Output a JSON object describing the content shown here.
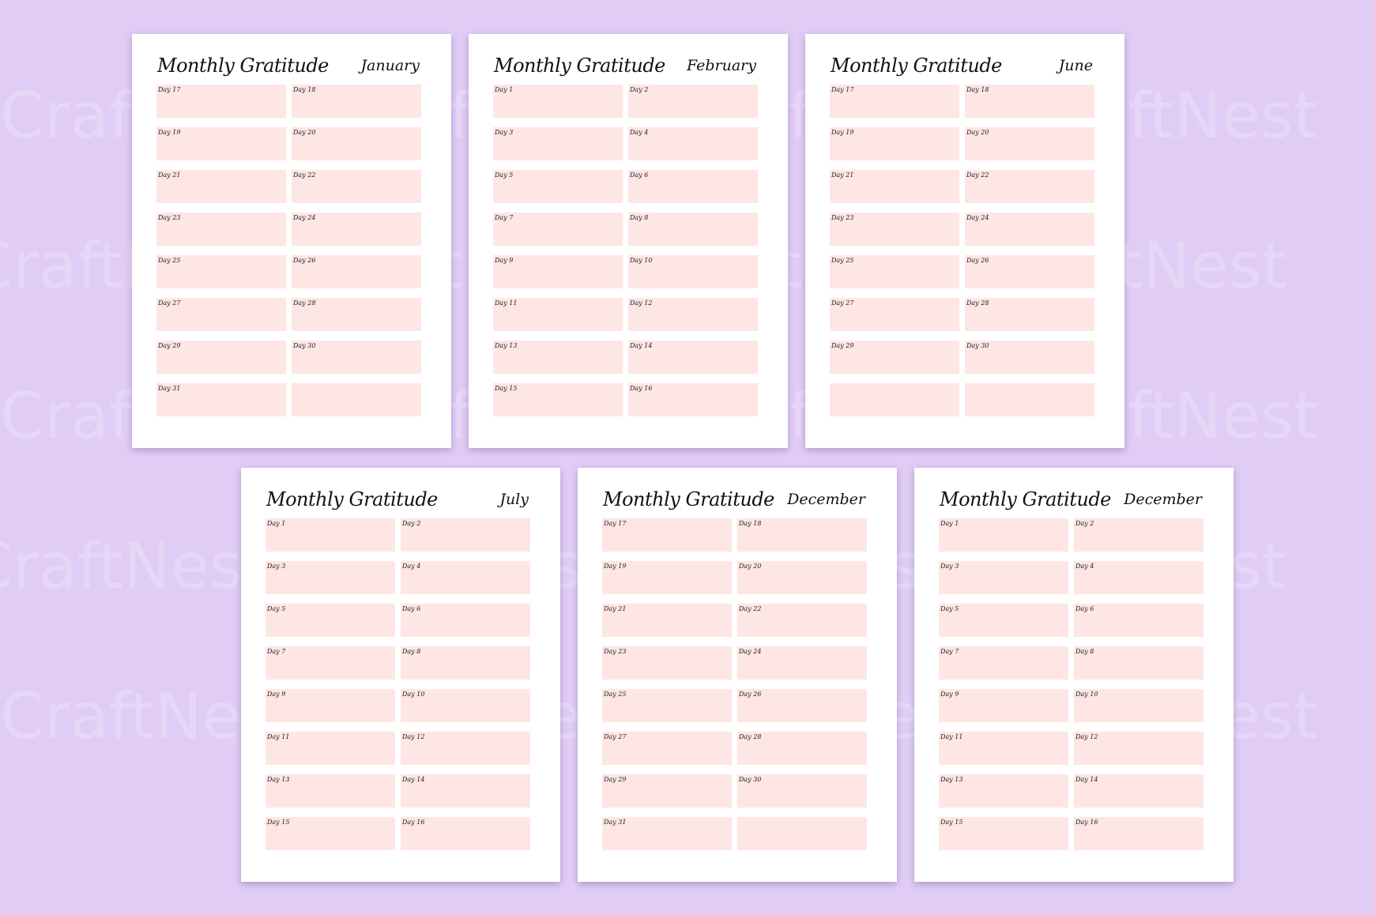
{
  "watermark": {
    "text": "CraftNest"
  },
  "pages": [
    {
      "title": "Monthly Gratitude",
      "month": "January",
      "days": [
        "Day 17",
        "Day 18",
        "Day 19",
        "Day 20",
        "Day 21",
        "Day 22",
        "Day 23",
        "Day 24",
        "Day 25",
        "Day 26",
        "Day 27",
        "Day 28",
        "Day 29",
        "Day 30",
        "Day 31",
        ""
      ]
    },
    {
      "title": "Monthly Gratitude",
      "month": "February",
      "days": [
        "Day 1",
        "Day 2",
        "Day 3",
        "Day 4",
        "Day 5",
        "Day 6",
        "Day 7",
        "Day 8",
        "Day 9",
        "Day 10",
        "Day 11",
        "Day 12",
        "Day 13",
        "Day 14",
        "Day 15",
        "Day 16"
      ]
    },
    {
      "title": "Monthly Gratitude",
      "month": "June",
      "days": [
        "Day 17",
        "Day 18",
        "Day 19",
        "Day 20",
        "Day 21",
        "Day 22",
        "Day 23",
        "Day 24",
        "Day 25",
        "Day 26",
        "Day 27",
        "Day 28",
        "Day 29",
        "Day 30",
        "",
        ""
      ]
    },
    {
      "title": "Monthly Gratitude",
      "month": "July",
      "days": [
        "Day 1",
        "Day 2",
        "Day 3",
        "Day 4",
        "Day 5",
        "Day 6",
        "Day 7",
        "Day 8",
        "Day 9",
        "Day 10",
        "Day 11",
        "Day 12",
        "Day 13",
        "Day 14",
        "Day 15",
        "Day 16"
      ]
    },
    {
      "title": "Monthly Gratitude",
      "month": "December",
      "days": [
        "Day 17",
        "Day 18",
        "Day 19",
        "Day 20",
        "Day 21",
        "Day 22",
        "Day 23",
        "Day 24",
        "Day 25",
        "Day 26",
        "Day 27",
        "Day 28",
        "Day 29",
        "Day 30",
        "Day 31",
        ""
      ]
    },
    {
      "title": "Monthly Gratitude",
      "month": "December",
      "days": [
        "Day 1",
        "Day 2",
        "Day 3",
        "Day 4",
        "Day 5",
        "Day 6",
        "Day 7",
        "Day 8",
        "Day 9",
        "Day 10",
        "Day 11",
        "Day 12",
        "Day 13",
        "Day 14",
        "Day 15",
        "Day 16"
      ]
    }
  ],
  "colors": {
    "background": "#e0ccf5",
    "page": "#ffffff",
    "cell": "#fde6e4",
    "text": "#111111"
  }
}
